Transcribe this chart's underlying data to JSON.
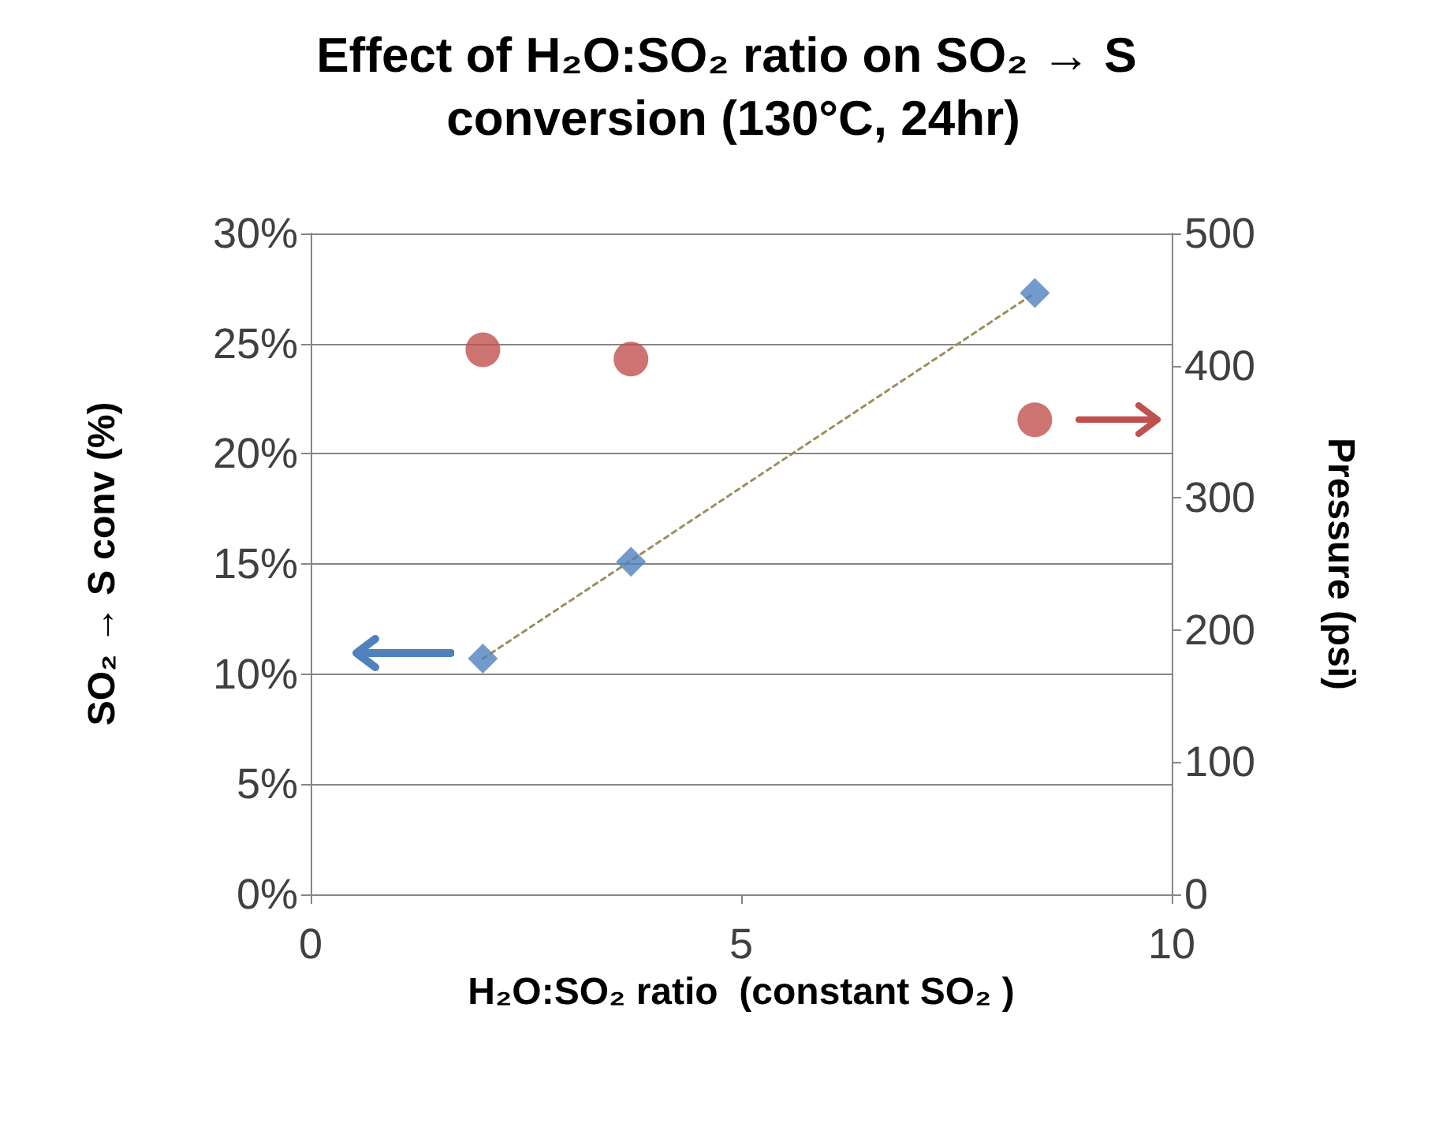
{
  "chart_data": {
    "type": "scatter",
    "title": "Effect of H₂O:SO₂ ratio on SO₂ → S conversion (130°C, 24hr)",
    "xlabel": "H₂O:SO₂ ratio  (constant SO₂ )",
    "ylabel": "SO₂ → S conv (%)",
    "y2label": "Pressure (psi)",
    "series": [
      {
        "color": "#4f81bd",
        "marker": "diamond",
        "x": [
          2.0,
          3.72,
          8.41
        ],
        "values": [
          10.7,
          15.1,
          27.3
        ]
      },
      {
        "color": "#c0504d",
        "marker": "circle",
        "axis": "y2",
        "x": [
          2.0,
          3.72,
          8.41
        ],
        "values": [
          412,
          405,
          359
        ]
      },
      {
        "type": "line",
        "color": "#9b8f5a",
        "marker": "none",
        "line_style": "dotted",
        "x": [
          2.0,
          8.41
        ],
        "values": [
          10.7,
          27.3
        ]
      }
    ],
    "xlim": [
      0,
      10
    ],
    "xticks": [
      0,
      5,
      10
    ],
    "ylim": [
      0,
      30
    ],
    "yticks": [
      {
        "value": 0,
        "label": "0%"
      },
      {
        "value": 5,
        "label": "5%"
      },
      {
        "value": 10,
        "label": "10%"
      },
      {
        "value": 15,
        "label": "15%"
      },
      {
        "value": 20,
        "label": "20%"
      },
      {
        "value": 25,
        "label": "25%"
      },
      {
        "value": 30,
        "label": "30%"
      }
    ],
    "y2lim": [
      0,
      500
    ],
    "y2ticks": [
      0,
      100,
      200,
      300,
      400,
      500
    ],
    "grid": "y"
  }
}
